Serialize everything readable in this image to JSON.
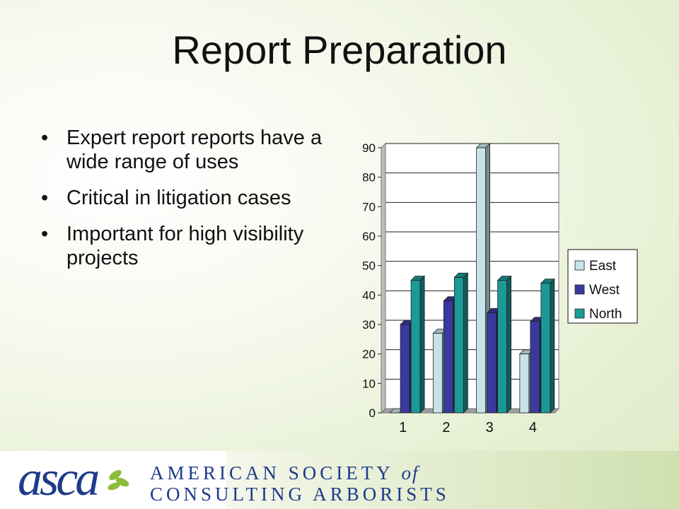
{
  "slide": {
    "title": "Report Preparation",
    "bullets": [
      "Expert report reports have a wide range of uses",
      "Critical in litigation cases",
      "Important for high visibility projects"
    ],
    "bullet_glyph": "•"
  },
  "footer": {
    "logo_text": "asca",
    "org_line1_main": "AMERICAN SOCIETY",
    "org_line1_of": "of",
    "org_line2": "CONSULTING ARBORISTS",
    "colors": {
      "logo_blue": "#1e3a8a",
      "logo_green": "#8dbb3c"
    }
  },
  "chart_data": {
    "type": "bar",
    "categories": [
      "1",
      "2",
      "3",
      "4"
    ],
    "series": [
      {
        "name": "East",
        "values": [
          0,
          27,
          90,
          20
        ],
        "color": "#c7e3ea"
      },
      {
        "name": "West",
        "values": [
          30,
          38,
          34,
          31
        ],
        "color": "#3a3a9e"
      },
      {
        "name": "North",
        "values": [
          45,
          46,
          45,
          44
        ],
        "color": "#1a9a96"
      }
    ],
    "title": "",
    "xlabel": "",
    "ylabel": "",
    "ylim": [
      0,
      90
    ],
    "yticks": [
      "0",
      "10",
      "20",
      "30",
      "40",
      "50",
      "60",
      "70",
      "80",
      "90"
    ],
    "grid": true,
    "legend": "right"
  }
}
